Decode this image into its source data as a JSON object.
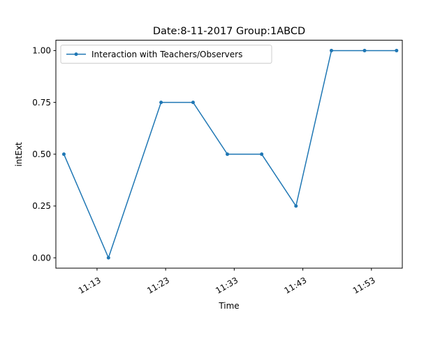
{
  "chart_data": {
    "type": "line",
    "title": "Date:8-11-2017  Group:1ABCD",
    "xlabel": "Time",
    "ylabel": "intExt",
    "x_ticks": [
      "11:13",
      "11:23",
      "11:33",
      "11:43",
      "11:53"
    ],
    "y_ticks": [
      "0.00",
      "0.25",
      "0.50",
      "0.75",
      "1.00"
    ],
    "xlim": [
      "11:07:00",
      "11:57:30"
    ],
    "ylim": [
      -0.05,
      1.05
    ],
    "grid": false,
    "legend_position": "upper-left",
    "series": [
      {
        "name": "Interaction with Teachers/Observers",
        "color": "#1f77b4",
        "marker": "point",
        "x": [
          "11:08:10",
          "11:14:40",
          "11:22:20",
          "11:27:00",
          "11:32:00",
          "11:37:00",
          "11:42:00",
          "11:47:10",
          "11:52:00",
          "11:56:40"
        ],
        "y": [
          0.5,
          0.0,
          0.75,
          0.75,
          0.5,
          0.5,
          0.25,
          1.0,
          1.0,
          1.0
        ]
      }
    ]
  }
}
